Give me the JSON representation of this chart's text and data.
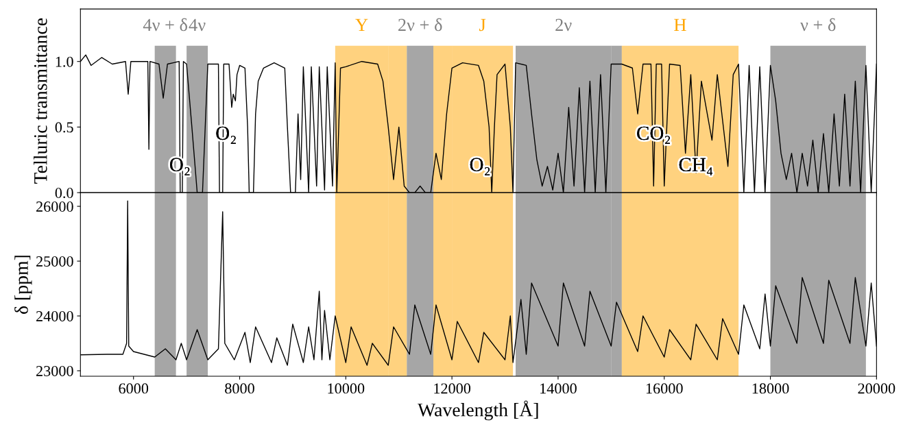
{
  "chart_data": [
    {
      "type": "line",
      "ylabel": "Telluric transmittance",
      "xlim": [
        5000,
        20000
      ],
      "ylim": [
        0,
        1.4
      ],
      "xticks": [
        6000,
        8000,
        10000,
        12000,
        14000,
        16000,
        18000,
        20000
      ],
      "yticks": [
        {
          "value": 0,
          "label": "0.0"
        },
        {
          "value": 0.5,
          "label": "0.5"
        },
        {
          "value": 1.0,
          "label": "1.0"
        }
      ],
      "tick_labels": "y",
      "series": [
        {
          "color": "#000000",
          "x": [
            5000,
            5100,
            5200,
            5400,
            5600,
            5850,
            5900,
            5950,
            6270,
            6290,
            6310,
            6480,
            6560,
            6640,
            6860,
            6880,
            6920,
            6940,
            7000,
            7100,
            7200,
            7300,
            7400,
            7600,
            7620,
            7680,
            7700,
            7800,
            7850,
            7880,
            7920,
            7950,
            8000,
            8100,
            8150,
            8180,
            8260,
            8300,
            8350,
            8450,
            8650,
            8850,
            8900,
            8960,
            9050,
            9100,
            9150,
            9200,
            9300,
            9350,
            9450,
            9500,
            9600,
            9650,
            9750,
            9800,
            9830,
            9900,
            10000,
            10300,
            10600,
            10700,
            10800,
            10900,
            11000,
            11100,
            11200,
            11300,
            11400,
            11500,
            11600,
            11700,
            11800,
            11900,
            12000,
            12200,
            12500,
            12600,
            12700,
            12750,
            12800,
            12850,
            13000,
            13100,
            13150,
            13200,
            13400,
            13500,
            13600,
            13700,
            13800,
            13900,
            14000,
            14100,
            14200,
            14300,
            14400,
            14500,
            14600,
            14700,
            14800,
            14900,
            15000,
            15200,
            15400,
            15500,
            15600,
            15750,
            15800,
            15850,
            15950,
            16000,
            16100,
            16300,
            16400,
            16500,
            16600,
            16700,
            16900,
            17000,
            17200,
            17300,
            17400,
            17500,
            17600,
            17700,
            17800,
            17900,
            18000,
            18100,
            18200,
            18300,
            18400,
            18500,
            18600,
            18700,
            18800,
            18900,
            19000,
            19100,
            19200,
            19300,
            19400,
            19500,
            19600,
            19700,
            19800,
            19900,
            20000
          ],
          "values": [
            1.0,
            1.05,
            0.97,
            1.03,
            0.98,
            1.0,
            0.75,
            1.0,
            1.0,
            0.33,
            1.0,
            0.98,
            0.72,
            0.98,
            1.0,
            0.0,
            0.0,
            1.0,
            0.98,
            0.5,
            0.0,
            0.0,
            0.98,
            0.98,
            0.0,
            0.0,
            0.98,
            0.98,
            0.65,
            0.75,
            0.7,
            0.9,
            0.97,
            0.95,
            0.5,
            0.0,
            0.0,
            0.6,
            0.85,
            0.95,
            0.99,
            0.95,
            0.5,
            0.0,
            0.0,
            0.6,
            0.1,
            0.96,
            0.0,
            0.96,
            0.05,
            0.96,
            0.02,
            0.96,
            0.05,
            0.99,
            0.0,
            0.95,
            0.96,
            1.0,
            0.98,
            0.85,
            0.5,
            0.1,
            0.5,
            0.05,
            0.0,
            0.0,
            0.05,
            0.0,
            0.0,
            0.3,
            0.1,
            0.6,
            0.95,
            0.99,
            0.97,
            0.85,
            0.5,
            0.0,
            0.5,
            0.9,
            0.98,
            0.5,
            0.0,
            0.99,
            0.97,
            0.6,
            0.25,
            0.05,
            0.2,
            0.02,
            0.3,
            0.0,
            0.65,
            0.05,
            0.8,
            0.0,
            0.85,
            0.0,
            0.9,
            0.0,
            0.98,
            0.98,
            0.95,
            0.6,
            0.98,
            0.98,
            0.05,
            0.98,
            0.98,
            0.05,
            0.98,
            0.97,
            0.3,
            0.9,
            0.15,
            0.85,
            0.4,
            0.9,
            0.2,
            0.9,
            0.98,
            0.0,
            0.97,
            0.0,
            0.96,
            0.0,
            0.97,
            0.7,
            0.3,
            0.1,
            0.3,
            0.0,
            0.3,
            0.05,
            0.4,
            0.0,
            0.45,
            0.0,
            0.6,
            0.05,
            0.75,
            0.05,
            0.85,
            0.0,
            0.97,
            0.0,
            0.98
          ]
        }
      ],
      "bands": [
        {
          "axis": "x",
          "from": 6400,
          "to": 6800,
          "label": "4ν + δ",
          "color": "#808080"
        },
        {
          "axis": "x",
          "from": 7000,
          "to": 7400,
          "label": "4ν",
          "color": "#808080"
        },
        {
          "axis": "x",
          "from": 9800,
          "to": 10800,
          "label": "Y",
          "color": "#ffa500"
        },
        {
          "axis": "x",
          "from": 10800,
          "to": 11150,
          "color": "#ffa500"
        },
        {
          "axis": "x",
          "from": 11150,
          "to": 11650,
          "label": "2ν + δ",
          "color": "#808080"
        },
        {
          "axis": "x",
          "from": 11650,
          "to": 12000,
          "color": "#ffa500"
        },
        {
          "axis": "x",
          "from": 12000,
          "to": 13150,
          "label": "J",
          "color": "#ffa500"
        },
        {
          "axis": "x",
          "from": 13200,
          "to": 15000,
          "label": "2ν",
          "color": "#808080"
        },
        {
          "axis": "x",
          "from": 15000,
          "to": 15200,
          "color": "#808080"
        },
        {
          "axis": "x",
          "from": 15200,
          "to": 17400,
          "label": "H",
          "color": "#ffa500"
        },
        {
          "axis": "x",
          "from": 18000,
          "to": 19800,
          "label": "ν + δ",
          "color": "#808080"
        }
      ],
      "annotations": [
        "O₂",
        "O₂",
        "O₂",
        "CO₂",
        "CH₄"
      ]
    },
    {
      "type": "line",
      "xlabel": "Wavelength [Å]",
      "ylabel": "δ [ppm]",
      "xlim": [
        5000,
        20000
      ],
      "ylim": [
        22900,
        26250
      ],
      "xticks": [
        6000,
        8000,
        10000,
        12000,
        14000,
        16000,
        18000,
        20000
      ],
      "yticks": [
        23000,
        24000,
        25000,
        26000
      ],
      "series": [
        {
          "color": "#000000",
          "x": [
            5000,
            5500,
            5800,
            5870,
            5890,
            5910,
            6000,
            6400,
            6600,
            6800,
            6900,
            7000,
            7200,
            7400,
            7600,
            7680,
            7720,
            7900,
            8100,
            8200,
            8300,
            8600,
            8700,
            8900,
            9000,
            9200,
            9300,
            9400,
            9500,
            9550,
            9600,
            9700,
            9800,
            10000,
            10100,
            10400,
            10500,
            10800,
            10900,
            11200,
            11300,
            11600,
            11700,
            12000,
            12100,
            12500,
            12600,
            13000,
            13100,
            13150,
            13300,
            13400,
            13500,
            14000,
            14100,
            14500,
            14600,
            15000,
            15100,
            15500,
            15600,
            16000,
            16100,
            16500,
            16600,
            17000,
            17100,
            17400,
            17500,
            17800,
            17900,
            18000,
            18100,
            18500,
            18600,
            19000,
            19100,
            19500,
            19600,
            19800,
            19900,
            20000
          ],
          "values": [
            23290,
            23300,
            23300,
            23500,
            26100,
            23450,
            23350,
            23250,
            23400,
            23200,
            23500,
            23200,
            23750,
            23200,
            23400,
            25900,
            23500,
            23200,
            23700,
            23150,
            23800,
            23150,
            23600,
            23100,
            23850,
            23150,
            23800,
            23200,
            24450,
            23200,
            24100,
            23200,
            24000,
            23150,
            23800,
            23100,
            23500,
            23100,
            23800,
            23300,
            24200,
            23300,
            24200,
            23200,
            23900,
            23150,
            23700,
            23200,
            24000,
            23150,
            24300,
            23300,
            24600,
            23450,
            24600,
            23450,
            24450,
            23450,
            24250,
            23350,
            24000,
            23250,
            23750,
            23200,
            23850,
            23200,
            23950,
            23300,
            24200,
            23400,
            24400,
            23450,
            24550,
            23500,
            24700,
            23500,
            24650,
            23500,
            24700,
            23450,
            24600,
            23450
          ]
        }
      ],
      "bands": [
        {
          "axis": "x",
          "from": 6400,
          "to": 6800,
          "color": "#808080"
        },
        {
          "axis": "x",
          "from": 7000,
          "to": 7400,
          "color": "#808080"
        },
        {
          "axis": "x",
          "from": 9800,
          "to": 10800,
          "color": "#ffa500"
        },
        {
          "axis": "x",
          "from": 10800,
          "to": 11150,
          "color": "#ffa500"
        },
        {
          "axis": "x",
          "from": 11150,
          "to": 11650,
          "color": "#808080"
        },
        {
          "axis": "x",
          "from": 11650,
          "to": 12000,
          "color": "#ffa500"
        },
        {
          "axis": "x",
          "from": 12000,
          "to": 13150,
          "color": "#ffa500"
        },
        {
          "axis": "x",
          "from": 13200,
          "to": 15000,
          "color": "#808080"
        },
        {
          "axis": "x",
          "from": 15000,
          "to": 15200,
          "color": "#808080"
        },
        {
          "axis": "x",
          "from": 15200,
          "to": 17400,
          "color": "#ffa500"
        },
        {
          "axis": "x",
          "from": 18000,
          "to": 19800,
          "color": "#808080"
        }
      ]
    }
  ]
}
